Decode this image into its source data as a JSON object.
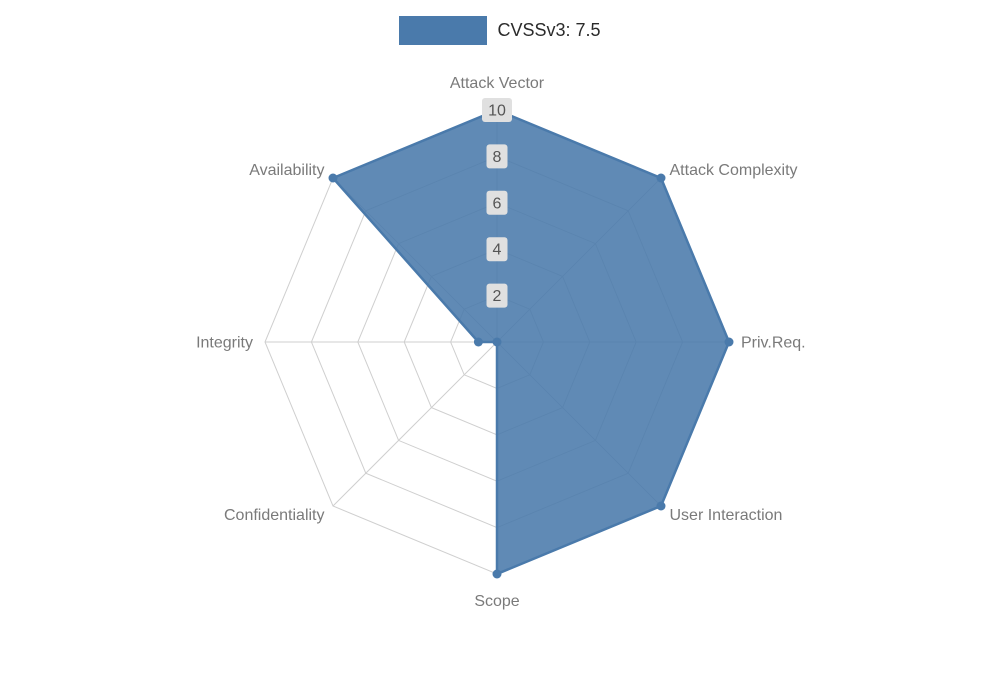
{
  "chart_data": {
    "type": "radar",
    "title": "",
    "legend": {
      "position": "top",
      "entries": [
        {
          "label": "CVSSv3: 7.5",
          "color": "#4a7aab"
        }
      ]
    },
    "categories": [
      "Attack Vector",
      "Attack Complexity",
      "Priv.Req.",
      "User Interaction",
      "Scope",
      "Confidentiality",
      "Integrity",
      "Availability"
    ],
    "series": [
      {
        "name": "CVSSv3: 7.5",
        "color": "#4a7aab",
        "fill_opacity": 0.88,
        "values": [
          10,
          10,
          10,
          10,
          10,
          0,
          0.8,
          10
        ]
      }
    ],
    "radial_ticks": [
      2,
      4,
      6,
      8,
      10
    ],
    "rlim": [
      0,
      10
    ],
    "grid": "spider-polygon",
    "start_angle_deg": 90,
    "direction": "clockwise",
    "colors": {
      "grid": "#cfcfcf",
      "axis_label": "#7a7a7a",
      "tick_label": "#555555",
      "tick_label_bg": "#e0e0e0",
      "background": "#ffffff"
    }
  }
}
